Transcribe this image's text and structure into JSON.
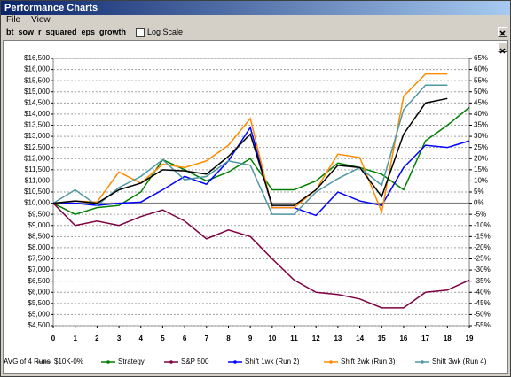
{
  "window": {
    "title": "Performance Charts",
    "menu": [
      "File",
      "View"
    ]
  },
  "toolbar": {
    "strategy": "bt_sow_r_squared_eps_growth",
    "log_scale": "Log Scale"
  },
  "chart_data": {
    "type": "line",
    "x": [
      0,
      1,
      2,
      3,
      4,
      5,
      6,
      7,
      8,
      9,
      10,
      11,
      12,
      13,
      14,
      15,
      16,
      17,
      18,
      19
    ],
    "xlim": [
      0,
      19
    ],
    "xticks": [
      0,
      1,
      2,
      3,
      4,
      5,
      6,
      7,
      8,
      9,
      10,
      11,
      12,
      13,
      14,
      15,
      16,
      17,
      18,
      19
    ],
    "ylim": [
      4500,
      16500
    ],
    "yticks": [
      {
        "value": 4500,
        "label": "$4,500"
      },
      {
        "value": 5000,
        "label": "$5,000"
      },
      {
        "value": 5500,
        "label": "$5,500"
      },
      {
        "value": 6000,
        "label": "$6,000"
      },
      {
        "value": 6500,
        "label": "$6,500"
      },
      {
        "value": 7000,
        "label": "$7,000"
      },
      {
        "value": 7500,
        "label": "$7,500"
      },
      {
        "value": 8000,
        "label": "$8,000"
      },
      {
        "value": 8500,
        "label": "$8,500"
      },
      {
        "value": 9000,
        "label": "$9,000"
      },
      {
        "value": 9500,
        "label": "$9,500"
      },
      {
        "value": 10000,
        "label": "$10,000"
      },
      {
        "value": 10500,
        "label": "$10,500"
      },
      {
        "value": 11000,
        "label": "$11,000"
      },
      {
        "value": 11500,
        "label": "$11,500"
      },
      {
        "value": 12000,
        "label": "$12,000"
      },
      {
        "value": 12500,
        "label": "$12,500"
      },
      {
        "value": 13000,
        "label": "$13,000"
      },
      {
        "value": 13500,
        "label": "$13,500"
      },
      {
        "value": 14000,
        "label": "$14,000"
      },
      {
        "value": 14500,
        "label": "$14,500"
      },
      {
        "value": 15000,
        "label": "$15,000"
      },
      {
        "value": 15500,
        "label": "$15,500"
      },
      {
        "value": 16000,
        "label": "$16,000"
      },
      {
        "value": 16500,
        "label": "$16,500"
      }
    ],
    "y2lim": [
      -55,
      65
    ],
    "y2ticks": [
      {
        "value": -55,
        "label": "-55%"
      },
      {
        "value": -50,
        "label": "-50%"
      },
      {
        "value": -45,
        "label": "-45%"
      },
      {
        "value": -40,
        "label": "-40%"
      },
      {
        "value": -35,
        "label": "-35%"
      },
      {
        "value": -30,
        "label": "-30%"
      },
      {
        "value": -25,
        "label": "-25%"
      },
      {
        "value": -20,
        "label": "-20%"
      },
      {
        "value": -15,
        "label": "-15%"
      },
      {
        "value": -10,
        "label": "-10%"
      },
      {
        "value": -5,
        "label": "-5%"
      },
      {
        "value": 0,
        "label": "0%"
      },
      {
        "value": 5,
        "label": "5%"
      },
      {
        "value": 10,
        "label": "10%"
      },
      {
        "value": 15,
        "label": "15%"
      },
      {
        "value": 20,
        "label": "20%"
      },
      {
        "value": 25,
        "label": "25%"
      },
      {
        "value": 30,
        "label": "30%"
      },
      {
        "value": 35,
        "label": "35%"
      },
      {
        "value": 40,
        "label": "40%"
      },
      {
        "value": 45,
        "label": "45%"
      },
      {
        "value": 50,
        "label": "50%"
      },
      {
        "value": 55,
        "label": "55%"
      },
      {
        "value": 60,
        "label": "60%"
      },
      {
        "value": 65,
        "label": "65%"
      }
    ],
    "grid": true,
    "legend": "bottom",
    "series": [
      {
        "name": "$10K-0%",
        "color": "#808080",
        "values": [
          10000,
          10000,
          10000,
          10000,
          10000,
          10000,
          10000,
          10000,
          10000,
          10000,
          10000,
          10000,
          10000,
          10000,
          10000,
          10000,
          10000,
          10000,
          10000,
          10000
        ]
      },
      {
        "name": "Strategy",
        "color": "#008000",
        "values": [
          10000,
          9500,
          9800,
          9900,
          10500,
          11950,
          11500,
          11000,
          11400,
          12000,
          10600,
          10600,
          11000,
          11800,
          11600,
          11300,
          10600,
          12800,
          13500,
          14300
        ]
      },
      {
        "name": "S&P 500",
        "color": "#800040",
        "values": [
          10000,
          9000,
          9200,
          9000,
          9400,
          9700,
          9200,
          8400,
          8800,
          8500,
          7500,
          6550,
          6000,
          5900,
          5700,
          5300,
          5300,
          6000,
          6100,
          6550
        ]
      },
      {
        "name": "Shift 1wk (Run 2)",
        "color": "#0000ff",
        "values": [
          10000,
          10000,
          9900,
          10000,
          10050,
          10600,
          11200,
          10850,
          11900,
          13400,
          9800,
          9800,
          9450,
          10500,
          10100,
          9900,
          11600,
          12600,
          12500,
          12800
        ]
      },
      {
        "name": "Shift 2wk (Run 3)",
        "color": "#ff8c00",
        "values": [
          10000,
          10100,
          10050,
          11400,
          10900,
          11750,
          11600,
          11900,
          12600,
          13800,
          9800,
          9800,
          10600,
          12200,
          12050,
          9600,
          14800,
          15800,
          15800,
          null
        ]
      },
      {
        "name": "Shift 3wk (Run 4)",
        "color": "#4f97a3",
        "values": [
          10000,
          10600,
          9900,
          10700,
          11200,
          11950,
          11050,
          11200,
          11900,
          11700,
          9500,
          9500,
          10500,
          11100,
          11600,
          10800,
          14200,
          15300,
          15300,
          null
        ]
      },
      {
        "name": "AVG of 4 Runs",
        "color": "#000000",
        "values": [
          10000,
          10100,
          10000,
          10600,
          10900,
          11500,
          11450,
          11300,
          12100,
          13100,
          9900,
          9900,
          10600,
          11700,
          11600,
          10300,
          13100,
          14500,
          14700,
          null
        ]
      }
    ]
  }
}
